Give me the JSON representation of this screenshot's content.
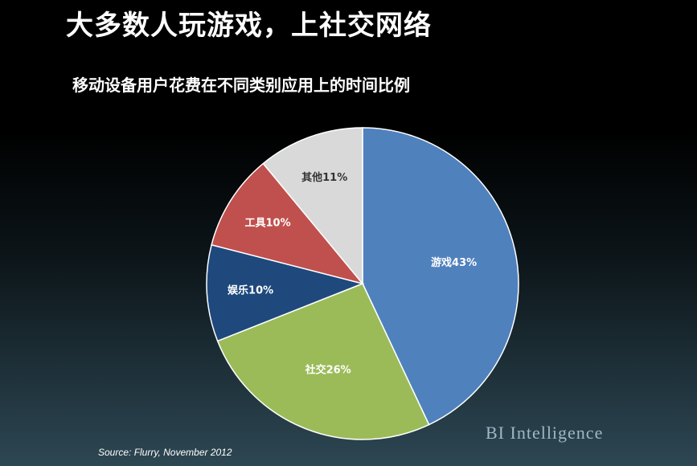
{
  "slide": {
    "title": "大多数人玩游戏，上社交网络",
    "source": "Source: Flurry, November 2012",
    "brand": "BI Intelligence"
  },
  "chart_data": {
    "type": "pie",
    "title": "移动设备用户花费在不同类别应用上的时间比例",
    "categories": [
      "游戏",
      "社交",
      "娱乐",
      "工具",
      "其他"
    ],
    "values": [
      43,
      26,
      10,
      10,
      11
    ],
    "labels": [
      "游戏43%",
      "社交26%",
      "娱乐10%",
      "工具10%",
      "其他11%"
    ],
    "colors": [
      "#4f81bd",
      "#9bbb59",
      "#1f497d",
      "#c0504d",
      "#d9d9d9"
    ],
    "label_colors": [
      "#ffffff",
      "#ffffff",
      "#ffffff",
      "#ffffff",
      "#333333"
    ],
    "start": "12 o'clock",
    "direction": "clockwise",
    "legend": "none"
  }
}
